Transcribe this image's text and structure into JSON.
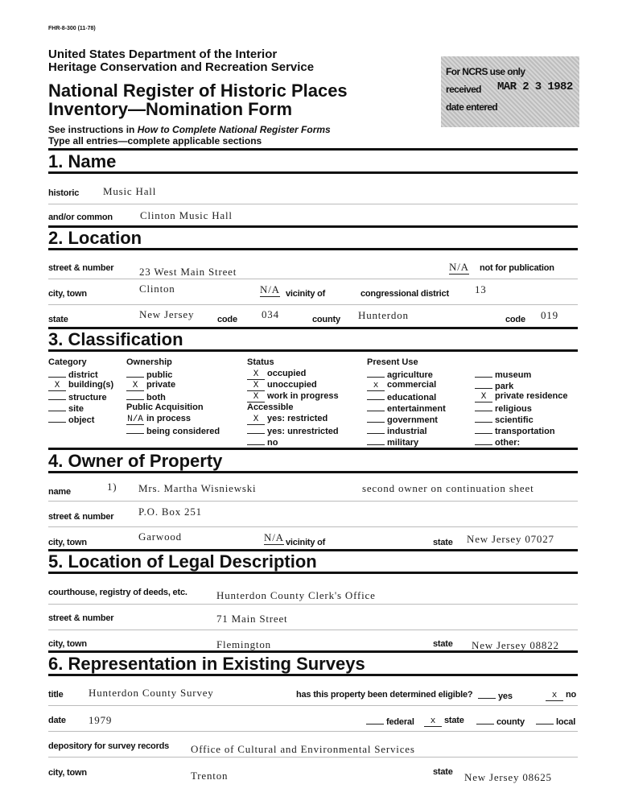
{
  "form_number": "FHR-8-300  (11-78)",
  "header": {
    "dept": "United States Department of the Interior",
    "service": "Heritage Conservation and Recreation Service",
    "title_line1": "National Register of Historic Places",
    "title_line2": "Inventory—Nomination Form",
    "instructions_prefix": "See instructions in ",
    "instructions_italic": "How to Complete National Register Forms",
    "type_all": "Type all entries—complete applicable sections"
  },
  "stamp": {
    "line1": "For NCRS use only",
    "received_label": "received",
    "received_date": "MAR 2 3 1982",
    "date_entered_label": "date entered"
  },
  "s1": {
    "title": "1. Name",
    "historic_label": "historic",
    "historic": "Music Hall",
    "common_label": "and/or common",
    "common": "Clinton Music Hall"
  },
  "s2": {
    "title": "2. Location",
    "street_label": "street & number",
    "street": "23 West Main Street",
    "nfp_mark": "N/A",
    "nfp_label": "not for publication",
    "city_label": "city, town",
    "city": "Clinton",
    "vicinity_mark": "N/A",
    "vicinity_label": "vicinity of",
    "cong_label": "congressional district",
    "cong": "13",
    "state_label": "state",
    "state": "New Jersey",
    "code_label": "code",
    "state_code": "034",
    "county_label": "county",
    "county": "Hunterdon",
    "county_code_label": "code",
    "county_code": "019"
  },
  "s3": {
    "title": "3. Classification",
    "columns": [
      {
        "heading": "Category",
        "items": [
          {
            "mark": "",
            "label": "district"
          },
          {
            "mark": "X",
            "label": "building(s)"
          },
          {
            "mark": "",
            "label": "structure"
          },
          {
            "mark": "",
            "label": "site"
          },
          {
            "mark": "",
            "label": "object"
          }
        ]
      },
      {
        "heading": "Ownership",
        "items": [
          {
            "mark": "",
            "label": "public"
          },
          {
            "mark": "X",
            "label": "private"
          },
          {
            "mark": "",
            "label": "both"
          }
        ],
        "heading2": "Public Acquisition",
        "items2": [
          {
            "mark": "N/A",
            "label": "in process"
          },
          {
            "mark": "",
            "label": "being considered"
          }
        ]
      },
      {
        "heading": "Status",
        "items": [
          {
            "mark": "X",
            "label": "occupied"
          },
          {
            "mark": "X",
            "label": "unoccupied"
          },
          {
            "mark": "X",
            "label": "work in progress"
          }
        ],
        "heading2": "Accessible",
        "items2": [
          {
            "mark": "X",
            "label": "yes: restricted"
          },
          {
            "mark": "",
            "label": "yes: unrestricted"
          },
          {
            "mark": "",
            "label": "no"
          }
        ]
      },
      {
        "heading": "Present Use",
        "items": [
          {
            "mark": "",
            "label": "agriculture"
          },
          {
            "mark": "x",
            "label": "commercial"
          },
          {
            "mark": "",
            "label": "educational"
          },
          {
            "mark": "",
            "label": "entertainment"
          },
          {
            "mark": "",
            "label": "government"
          },
          {
            "mark": "",
            "label": "industrial"
          },
          {
            "mark": "",
            "label": "military"
          }
        ]
      },
      {
        "heading": "",
        "items": [
          {
            "mark": "",
            "label": "museum"
          },
          {
            "mark": "",
            "label": "park"
          },
          {
            "mark": "X",
            "label": "private residence"
          },
          {
            "mark": "",
            "label": "religious"
          },
          {
            "mark": "",
            "label": "scientific"
          },
          {
            "mark": "",
            "label": "transportation"
          },
          {
            "mark": "",
            "label": "other:"
          }
        ]
      }
    ]
  },
  "s4": {
    "title": "4. Owner of Property",
    "name_label": "name",
    "num": "1)",
    "name": "Mrs. Martha Wisniewski",
    "note": "second owner on continuation sheet",
    "street_label": "street & number",
    "street": "P.O. Box 251",
    "city_label": "city, town",
    "city": "Garwood",
    "vicinity_mark": "N/A",
    "vicinity_label": "vicinity of",
    "state_label": "state",
    "state": "New Jersey 07027"
  },
  "s5": {
    "title": "5. Location of Legal Description",
    "court_label": "courthouse, registry of deeds, etc.",
    "court": "Hunterdon County Clerk's Office",
    "street_label": "street & number",
    "street": "71 Main Street",
    "city_label": "city, town",
    "city": "Flemington",
    "state_label": "state",
    "state": "New Jersey 08822"
  },
  "s6": {
    "title": "6. Representation in Existing Surveys",
    "title_label": "title",
    "survey": "Hunterdon County Survey",
    "eligible_q": "has this property been determined eligible?",
    "yes_label": "yes",
    "yes_mark": "",
    "no_label": "no",
    "no_mark": "x",
    "date_label": "date",
    "date": "1979",
    "federal_label": "federal",
    "federal_mark": "",
    "state_level_label": "state",
    "state_level_mark": "x",
    "county_label": "county",
    "county_mark": "",
    "local_label": "local",
    "local_mark": "",
    "depository_label": "depository for survey records",
    "depository": "Office of Cultural and Environmental Services",
    "city_label": "city, town",
    "city": "Trenton",
    "state_label": "state",
    "state": "New Jersey 08625"
  }
}
